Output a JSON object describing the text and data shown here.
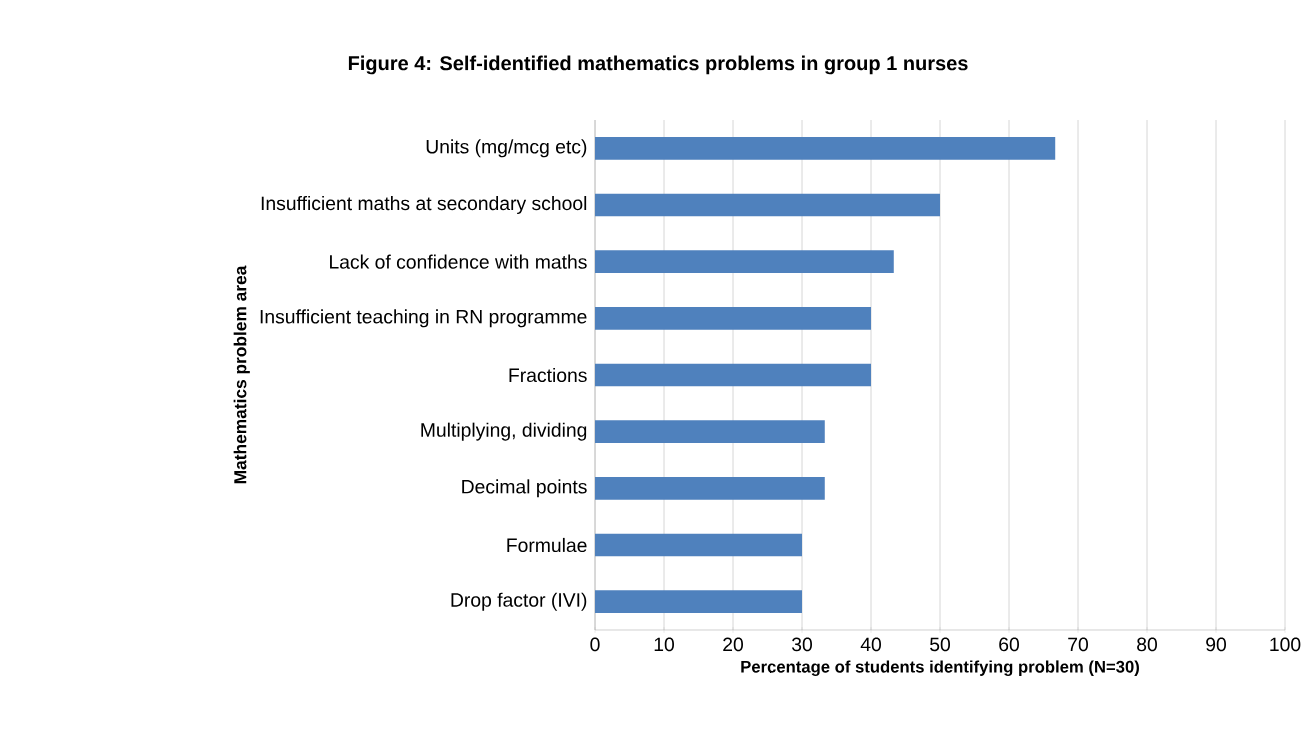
{
  "chart_data": {
    "type": "bar",
    "orientation": "horizontal",
    "title": "Figure 4: Self-identified mathematics problems in group 1 nurses",
    "xlabel": "Percentage of students identifying problem (N=30)",
    "ylabel": "Mathematics problem area",
    "categories": [
      "Units (mg/mcg etc)",
      "Insufficient maths at secondary school",
      "Lack of confidence with maths",
      "Insufficient teaching in RN programme",
      "Fractions",
      "Multiplying, dividing",
      "Decimal points",
      "Formulae",
      "Drop factor (IVI)"
    ],
    "values": [
      66.7,
      50,
      43.3,
      40,
      40,
      33.3,
      33.3,
      30,
      30
    ],
    "color": "#4f81bd",
    "xlim": [
      0,
      100
    ],
    "xticks": [
      0,
      10,
      20,
      30,
      40,
      50,
      60,
      70,
      80,
      90,
      100
    ],
    "grid": "x"
  }
}
